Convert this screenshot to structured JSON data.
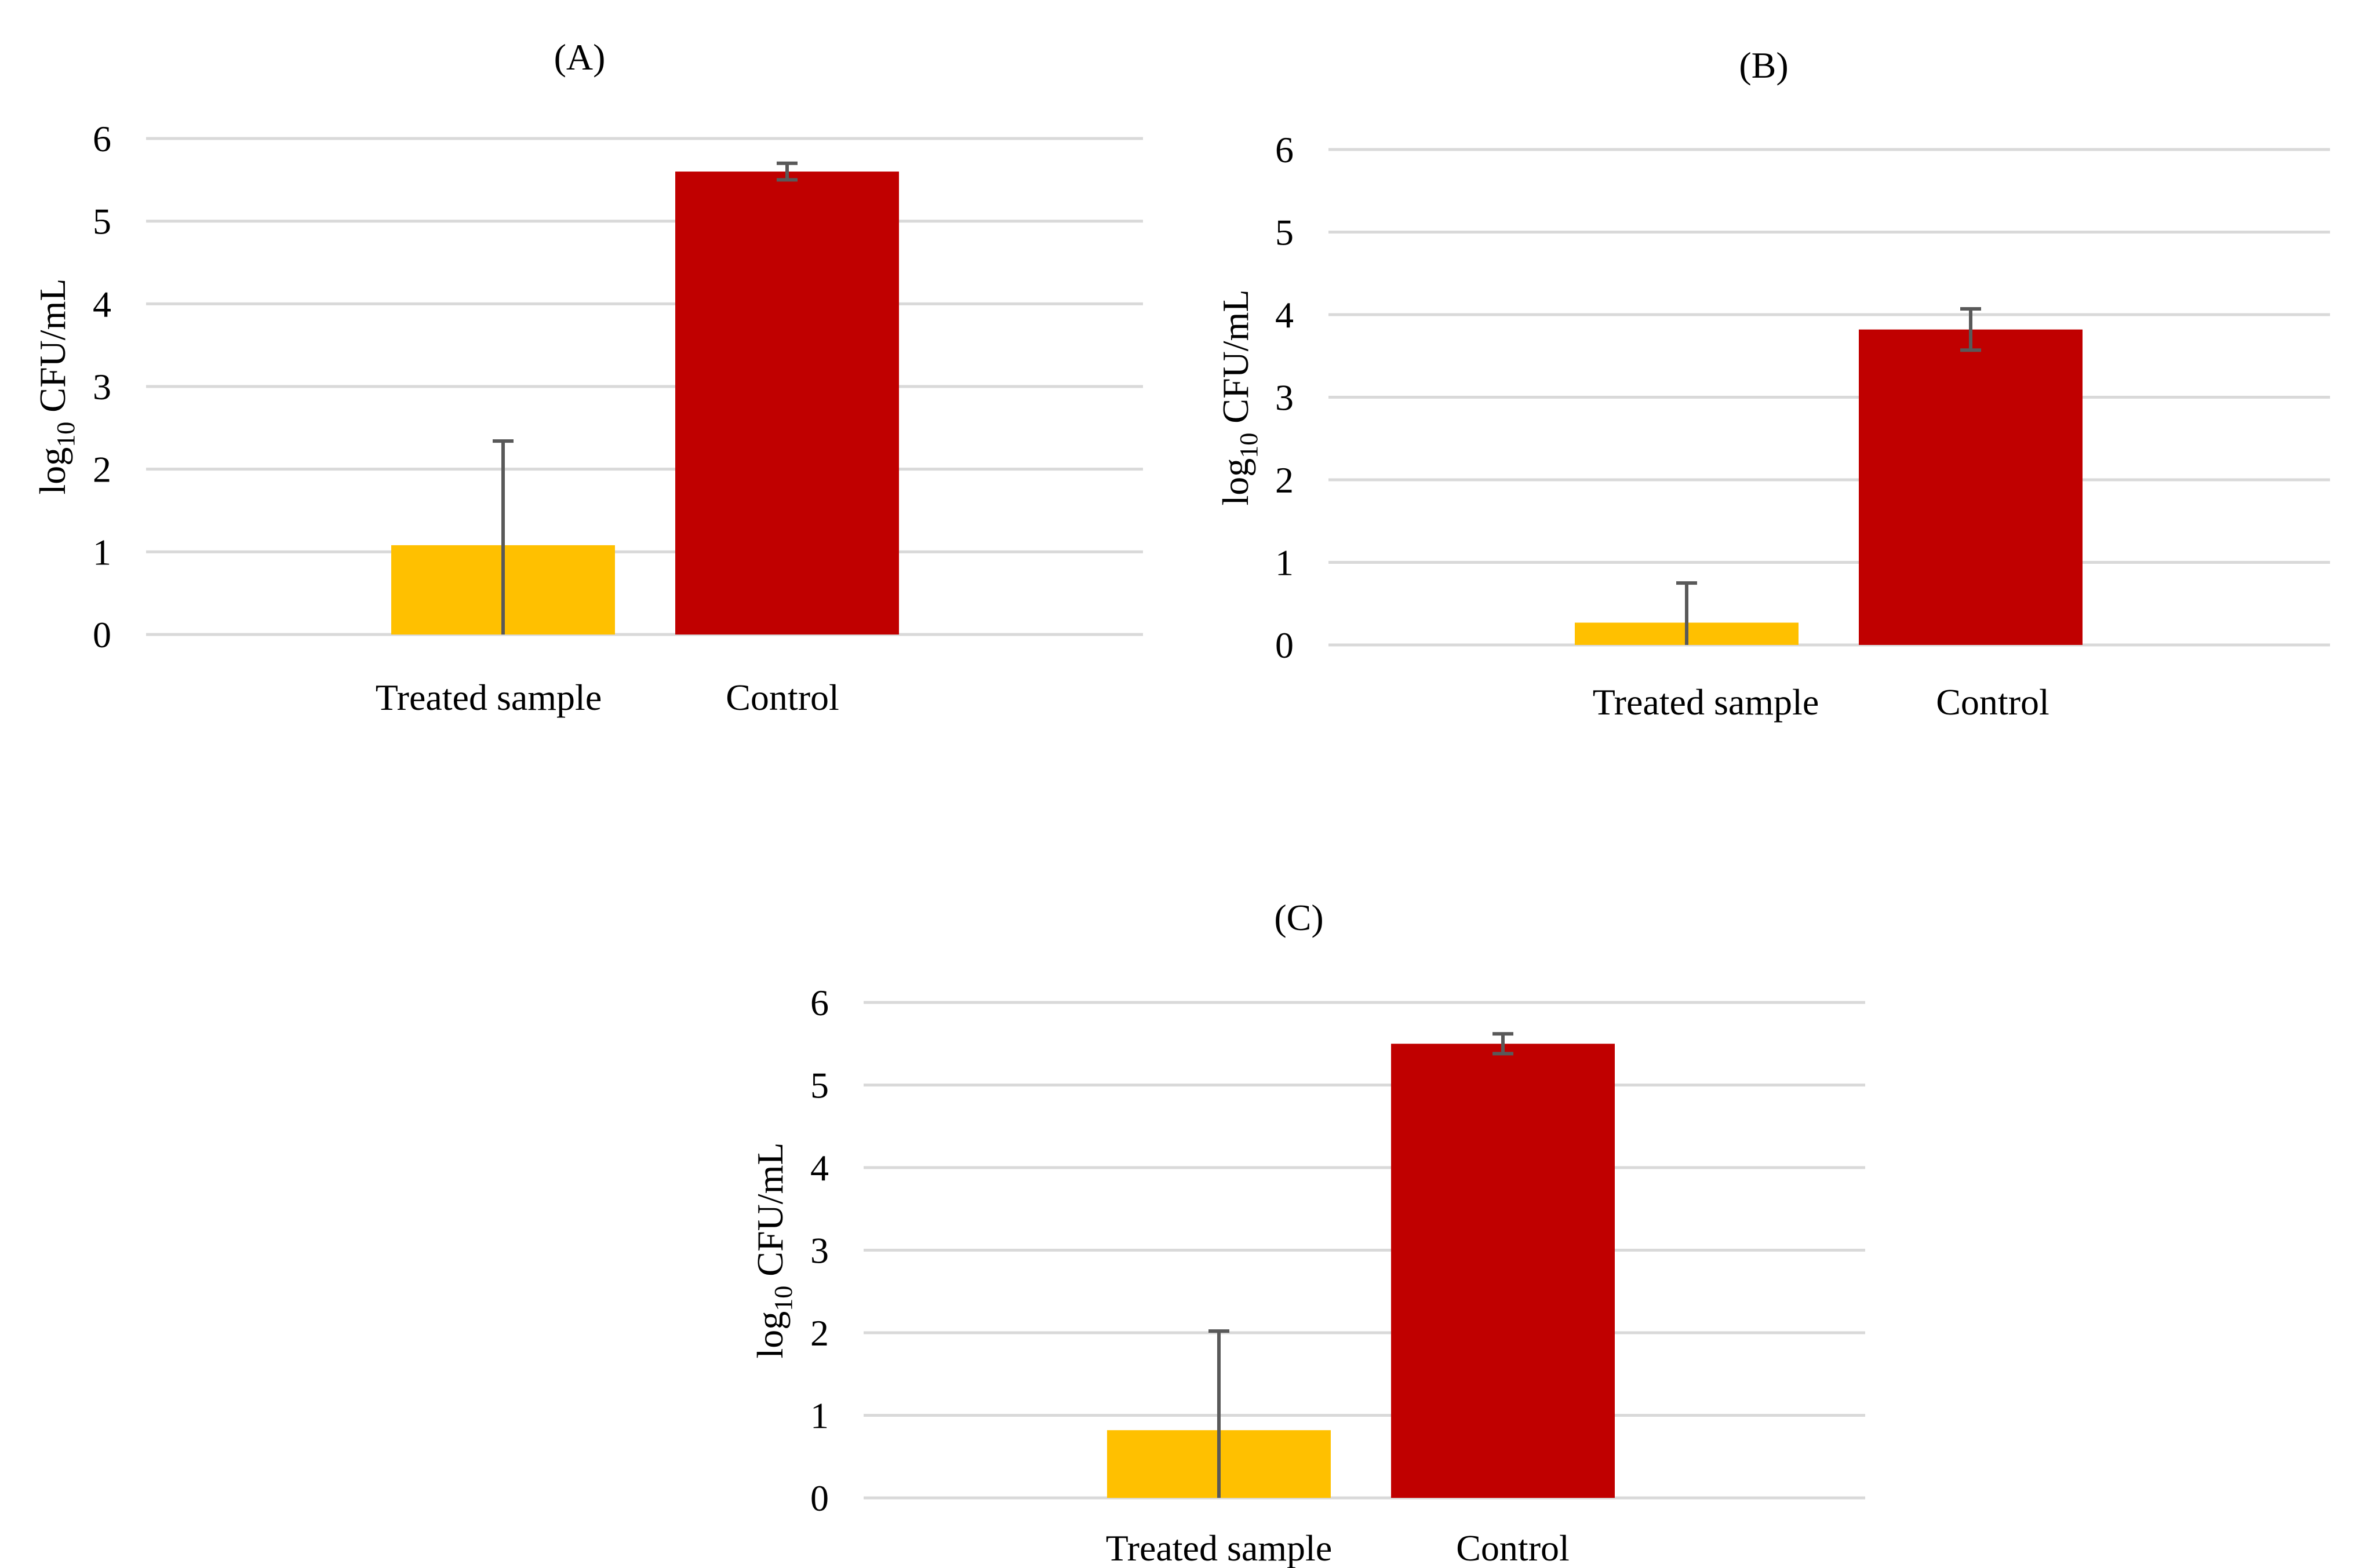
{
  "figure_colors": {
    "treated": "#FFC000",
    "control": "#C00000",
    "grid": "#D9D9D9",
    "error_bar": "#595959"
  },
  "chart_data": [
    {
      "type": "bar",
      "title": "(A)",
      "categories": [
        "Treated sample",
        "Control"
      ],
      "values": [
        1.08,
        5.6
      ],
      "errors": [
        1.26,
        0.1
      ],
      "xlabel": "",
      "ylabel": {
        "base": "log",
        "sub": "10",
        "rest": " CFU/mL"
      },
      "ylim": [
        0,
        6
      ],
      "yticks": [
        "0",
        "1",
        "2",
        "3",
        "4",
        "5",
        "6"
      ],
      "grid": true
    },
    {
      "type": "bar",
      "title": "(B)",
      "categories": [
        "Treated sample",
        "Control"
      ],
      "values": [
        0.27,
        3.82
      ],
      "errors": [
        0.48,
        0.25
      ],
      "xlabel": "",
      "ylabel": {
        "base": "log",
        "sub": "10",
        "rest": " CFU/mL"
      },
      "ylim": [
        0,
        6
      ],
      "yticks": [
        "0",
        "1",
        "2",
        "3",
        "4",
        "5",
        "6"
      ],
      "grid": true
    },
    {
      "type": "bar",
      "title": "(C)",
      "categories": [
        "Treated sample",
        "Control"
      ],
      "values": [
        0.82,
        5.5
      ],
      "errors": [
        1.2,
        0.12
      ],
      "xlabel": "",
      "ylabel": {
        "base": "log",
        "sub": "10",
        "rest": " CFU/mL"
      },
      "ylim": [
        0,
        6
      ],
      "yticks": [
        "0",
        "1",
        "2",
        "3",
        "4",
        "5",
        "6"
      ],
      "grid": true
    }
  ]
}
